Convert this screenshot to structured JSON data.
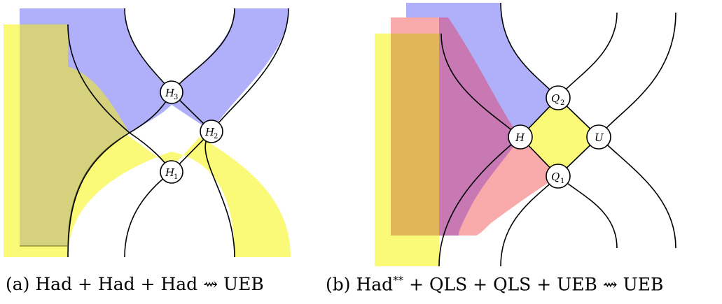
{
  "left_panel": {
    "nodes": [
      {
        "letter": "H",
        "sub": "3"
      },
      {
        "letter": "H",
        "sub": "2"
      },
      {
        "letter": "H",
        "sub": "1"
      }
    ],
    "caption": {
      "prefix": "(a) Had + Had + Had ",
      "arrow": "⇝",
      "suffix": " UEB"
    }
  },
  "right_panel": {
    "nodes": [
      {
        "letter": "Q",
        "sub": "2"
      },
      {
        "letter": "H",
        "sub": ""
      },
      {
        "letter": "U",
        "sub": ""
      },
      {
        "letter": "Q",
        "sub": "1"
      }
    ],
    "caption": {
      "prefix": "(b) Had",
      "sup": "**",
      "middle": " + QLS + QLS + UEB ",
      "arrow": "⇝",
      "suffix": " UEB"
    }
  },
  "colors": {
    "blue": "#b0b0fa",
    "yellow": "#fafa78",
    "overlap_olive": "#d5d17c",
    "orange": "#fdd263",
    "red": "#f9aaaa",
    "purple": "#c879b4",
    "brown": "#e1b55a"
  }
}
